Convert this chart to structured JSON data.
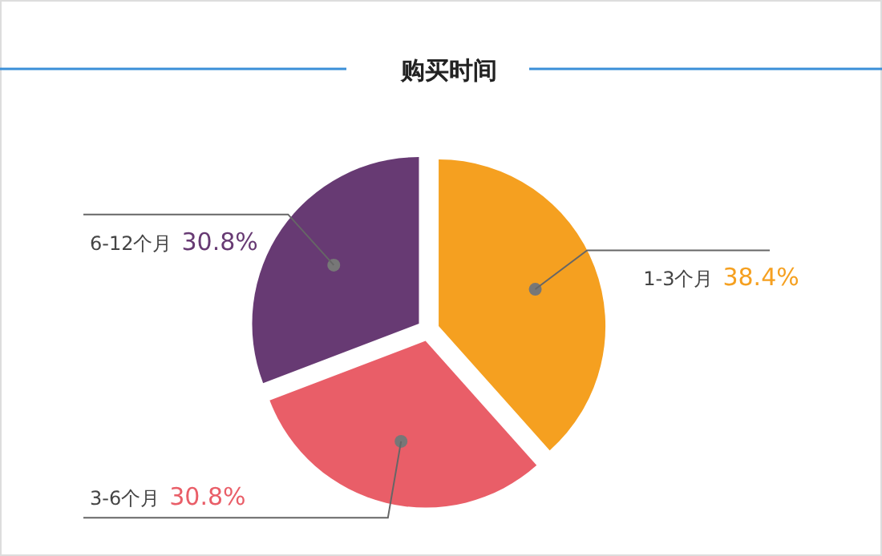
{
  "chart_data": {
    "type": "pie",
    "title": "购买时间",
    "categories": [
      "1-3个月",
      "3-6个月",
      "6-12个月"
    ],
    "values": [
      38.4,
      30.8,
      30.8
    ],
    "value_labels": [
      "38.4%",
      "30.8%",
      "30.8%"
    ],
    "colors": [
      "#f5a020",
      "#e95e68",
      "#673a73"
    ]
  }
}
